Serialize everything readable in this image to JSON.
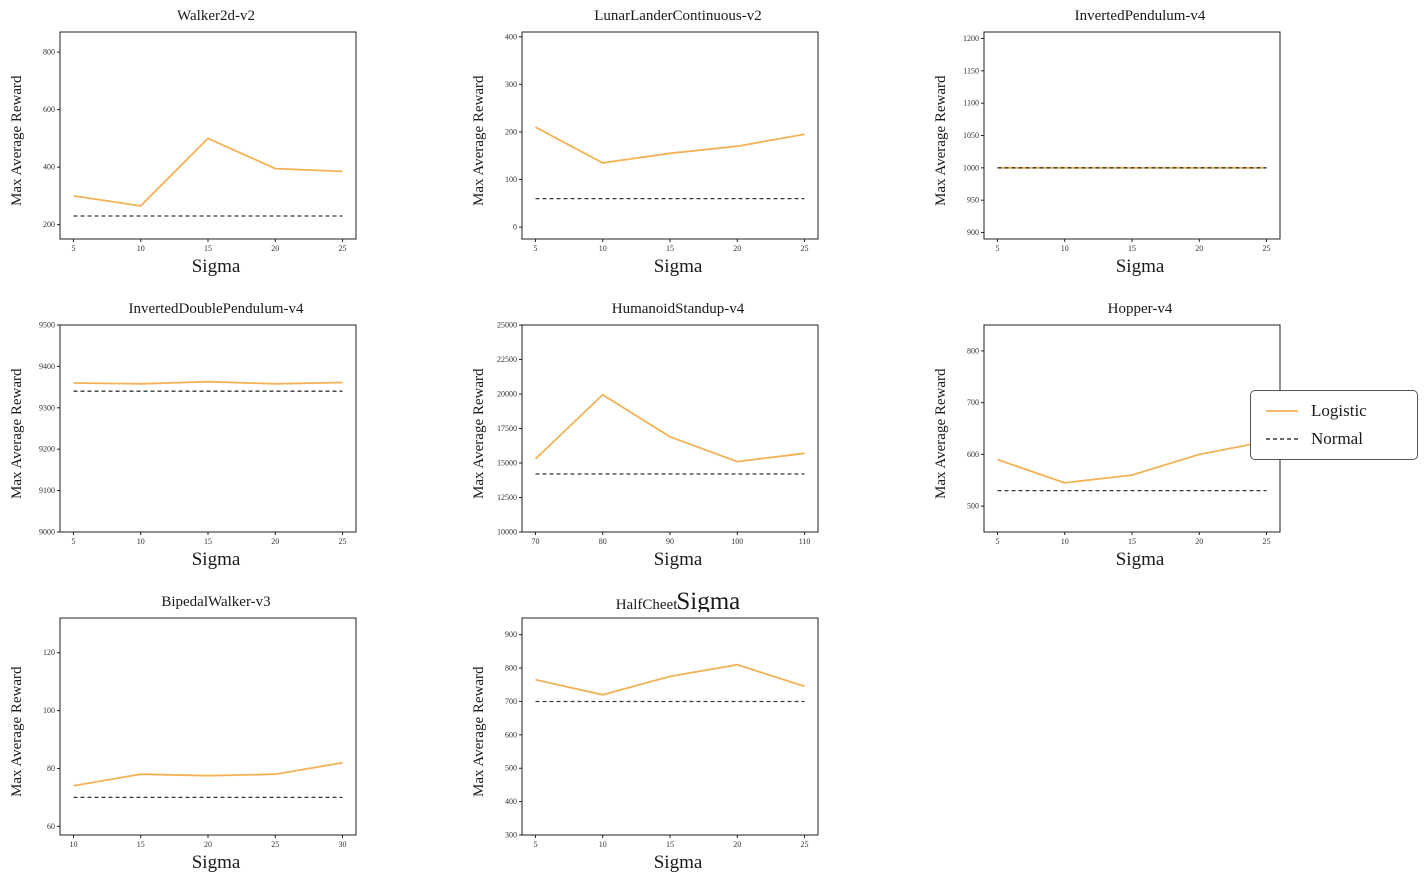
{
  "legend": {
    "items": [
      {
        "label": "Logistic",
        "color": "#f3b255",
        "dash": false
      },
      {
        "label": "Normal",
        "color": "#3a3a3a",
        "dash": true
      }
    ]
  },
  "chart_data": [
    {
      "type": "line",
      "title": "Walker2d-v2",
      "xlabel": "Sigma",
      "ylabel": "Max Average Reward",
      "x": [
        5,
        10,
        15,
        20,
        25
      ],
      "xlim": [
        4,
        26
      ],
      "ylim": [
        150,
        870
      ],
      "yticks": [
        200,
        400,
        600,
        800
      ],
      "series": [
        {
          "name": "Logistic",
          "color": "#f3b255",
          "dash": false,
          "values": [
            300,
            265,
            500,
            395,
            385
          ]
        },
        {
          "name": "Normal",
          "color": "#3a3a3a",
          "dash": true,
          "values": [
            230,
            230,
            230,
            230,
            230
          ]
        }
      ]
    },
    {
      "type": "line",
      "title": "LunarLanderContinuous-v2",
      "xlabel": "Sigma",
      "ylabel": "Max Average Reward",
      "x": [
        5,
        10,
        15,
        20,
        25
      ],
      "xlim": [
        4,
        26
      ],
      "ylim": [
        -25,
        410
      ],
      "yticks": [
        0,
        100,
        200,
        300,
        400
      ],
      "series": [
        {
          "name": "Logistic",
          "color": "#f3b255",
          "dash": false,
          "values": [
            210,
            135,
            155,
            170,
            195
          ]
        },
        {
          "name": "Normal",
          "color": "#3a3a3a",
          "dash": true,
          "values": [
            60,
            60,
            60,
            60,
            60
          ]
        }
      ]
    },
    {
      "type": "line",
      "title": "InvertedPendulum-v4",
      "xlabel": "Sigma",
      "ylabel": "Max Average Reward",
      "x": [
        5,
        10,
        15,
        20,
        25
      ],
      "xlim": [
        4,
        26
      ],
      "ylim": [
        890,
        1210
      ],
      "yticks": [
        900,
        950,
        1000,
        1050,
        1100,
        1150,
        1200
      ],
      "series": [
        {
          "name": "Logistic",
          "color": "#f3b255",
          "dash": false,
          "values": [
            1000,
            1000,
            1000,
            1000,
            1000
          ]
        },
        {
          "name": "Normal",
          "color": "#3a3a3a",
          "dash": true,
          "values": [
            1000,
            1000,
            1000,
            1000,
            1000
          ]
        }
      ]
    },
    {
      "type": "line",
      "title": "InvertedDoublePendulum-v4",
      "xlabel": "Sigma",
      "ylabel": "Max Average Reward",
      "x": [
        5,
        10,
        15,
        20,
        25
      ],
      "xlim": [
        4,
        26
      ],
      "ylim": [
        9000,
        9500
      ],
      "yticks": [
        9000,
        9100,
        9200,
        9300,
        9400,
        9500
      ],
      "series": [
        {
          "name": "Logistic",
          "color": "#f3b255",
          "dash": false,
          "values": [
            9360,
            9358,
            9363,
            9358,
            9361
          ]
        },
        {
          "name": "Normal",
          "color": "#3a3a3a",
          "dash": true,
          "values": [
            9340,
            9340,
            9340,
            9340,
            9340
          ]
        }
      ]
    },
    {
      "type": "line",
      "title": "HumanoidStandup-v4",
      "xlabel": "Sigma",
      "ylabel": "Max Average Reward",
      "x": [
        70,
        80,
        90,
        100,
        110
      ],
      "xlim": [
        68,
        112
      ],
      "ylim": [
        10000,
        25000
      ],
      "yticks": [
        10000,
        12500,
        15000,
        17500,
        20000,
        22500,
        25000
      ],
      "series": [
        {
          "name": "Logistic",
          "color": "#f3b255",
          "dash": false,
          "values": [
            15300,
            19950,
            16900,
            15100,
            15700
          ]
        },
        {
          "name": "Normal",
          "color": "#3a3a3a",
          "dash": true,
          "values": [
            14200,
            14200,
            14200,
            14200,
            14200
          ]
        }
      ]
    },
    {
      "type": "line",
      "title": "Hopper-v4",
      "xlabel": "Sigma",
      "ylabel": "Max Average Reward",
      "x": [
        5,
        10,
        15,
        20,
        25
      ],
      "xlim": [
        4,
        26
      ],
      "ylim": [
        450,
        850
      ],
      "yticks": [
        500,
        600,
        700,
        800
      ],
      "series": [
        {
          "name": "Logistic",
          "color": "#f3b255",
          "dash": false,
          "values": [
            590,
            545,
            560,
            600,
            625
          ]
        },
        {
          "name": "Normal",
          "color": "#3a3a3a",
          "dash": true,
          "values": [
            530,
            530,
            530,
            530,
            530
          ]
        }
      ]
    },
    {
      "type": "line",
      "title": "BipedalWalker-v3",
      "xlabel": "Sigma",
      "ylabel": "Max Average Reward",
      "x": [
        10,
        15,
        20,
        25,
        30
      ],
      "xlim": [
        9,
        31
      ],
      "ylim": [
        57,
        132
      ],
      "yticks": [
        60,
        80,
        100,
        120
      ],
      "series": [
        {
          "name": "Logistic",
          "color": "#f3b255",
          "dash": false,
          "values": [
            74,
            78,
            77.5,
            78,
            82
          ]
        },
        {
          "name": "Normal",
          "color": "#3a3a3a",
          "dash": true,
          "values": [
            70,
            70,
            70,
            70,
            70
          ]
        }
      ]
    },
    {
      "type": "line",
      "title": "HalfCheet",
      "title_overlay": "Sigma",
      "xlabel": "Sigma",
      "ylabel": "Max Average Reward",
      "x": [
        5,
        10,
        15,
        20,
        25
      ],
      "xlim": [
        4,
        26
      ],
      "ylim": [
        300,
        950
      ],
      "yticks": [
        300,
        400,
        500,
        600,
        700,
        800,
        900
      ],
      "series": [
        {
          "name": "Logistic",
          "color": "#f3b255",
          "dash": false,
          "values": [
            765,
            720,
            775,
            810,
            745
          ]
        },
        {
          "name": "Normal",
          "color": "#3a3a3a",
          "dash": true,
          "values": [
            700,
            700,
            700,
            700,
            700
          ]
        }
      ]
    }
  ]
}
